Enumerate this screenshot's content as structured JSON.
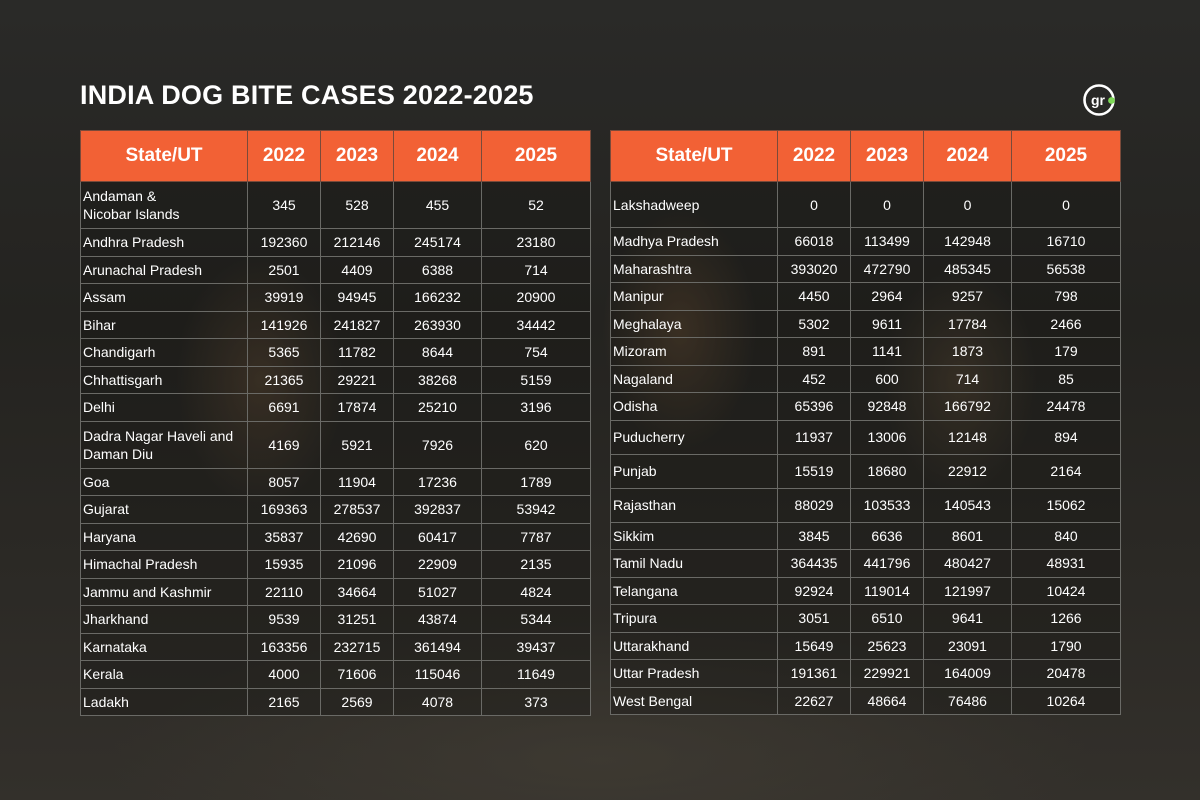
{
  "title": "INDIA DOG BITE CASES 2022-2025",
  "logo_text": "gr",
  "colors": {
    "header": "#f26135",
    "accent_dot": "#7ed957"
  },
  "chart_data": {
    "type": "table",
    "columns": [
      "State/UT",
      "2022",
      "2023",
      "2024",
      "2025"
    ],
    "tables": [
      {
        "rows": [
          [
            "Andaman &\nNicobar Islands",
            "345",
            "528",
            "455",
            "52"
          ],
          [
            "Andhra Pradesh",
            "192360",
            "212146",
            "245174",
            "23180"
          ],
          [
            "Arunachal Pradesh",
            "2501",
            "4409",
            "6388",
            "714"
          ],
          [
            "Assam",
            "39919",
            "94945",
            "166232",
            "20900"
          ],
          [
            "Bihar",
            "141926",
            "241827",
            "263930",
            "34442"
          ],
          [
            "Chandigarh",
            "5365",
            "11782",
            "8644",
            "754"
          ],
          [
            "Chhattisgarh",
            "21365",
            "29221",
            "38268",
            "5159"
          ],
          [
            "Delhi",
            "6691",
            "17874",
            "25210",
            "3196"
          ],
          [
            "Dadra Nagar Haveli and\nDaman Diu",
            "4169",
            "5921",
            "7926",
            "620"
          ],
          [
            "Goa",
            "8057",
            "11904",
            "17236",
            "1789"
          ],
          [
            "Gujarat",
            "169363",
            "278537",
            "392837",
            "53942"
          ],
          [
            "Haryana",
            "35837",
            "42690",
            "60417",
            "7787"
          ],
          [
            "Himachal Pradesh",
            "15935",
            "21096",
            "22909",
            "2135"
          ],
          [
            "Jammu and Kashmir",
            "22110",
            "34664",
            "51027",
            "4824"
          ],
          [
            "Jharkhand",
            "9539",
            "31251",
            "43874",
            "5344"
          ],
          [
            "Karnataka",
            "163356",
            "232715",
            "361494",
            "39437"
          ],
          [
            "Kerala",
            "4000",
            "71606",
            "115046",
            "11649"
          ],
          [
            "Ladakh",
            "2165",
            "2569",
            "4078",
            "373"
          ]
        ]
      },
      {
        "rows": [
          [
            "Lakshadweep",
            "0",
            "0",
            "0",
            "0"
          ],
          [
            "Madhya Pradesh",
            "66018",
            "113499",
            "142948",
            "16710"
          ],
          [
            "Maharashtra",
            "393020",
            "472790",
            "485345",
            "56538"
          ],
          [
            "Manipur",
            "4450",
            "2964",
            "9257",
            "798"
          ],
          [
            "Meghalaya",
            "5302",
            "9611",
            "17784",
            "2466"
          ],
          [
            "Mizoram",
            "891",
            "1141",
            "1873",
            "179"
          ],
          [
            "Nagaland",
            "452",
            "600",
            "714",
            "85"
          ],
          [
            "Odisha",
            "65396",
            "92848",
            "166792",
            "24478"
          ],
          [
            "Puducherry",
            "11937",
            "13006",
            "12148",
            "894"
          ],
          [
            "Punjab",
            "15519",
            "18680",
            "22912",
            "2164"
          ],
          [
            "Rajasthan",
            "88029",
            "103533",
            "140543",
            "15062"
          ],
          [
            "Sikkim",
            "3845",
            "6636",
            "8601",
            "840"
          ],
          [
            "Tamil Nadu",
            "364435",
            "441796",
            "480427",
            "48931"
          ],
          [
            "Telangana",
            "92924",
            "119014",
            "121997",
            "10424"
          ],
          [
            "Tripura",
            "3051",
            "6510",
            "9641",
            "1266"
          ],
          [
            "Uttarakhand",
            "15649",
            "25623",
            "23091",
            "1790"
          ],
          [
            "Uttar Pradesh",
            "191361",
            "229921",
            "164009",
            "20478"
          ],
          [
            "West Bengal",
            "22627",
            "48664",
            "76486",
            "10264"
          ]
        ]
      }
    ]
  }
}
